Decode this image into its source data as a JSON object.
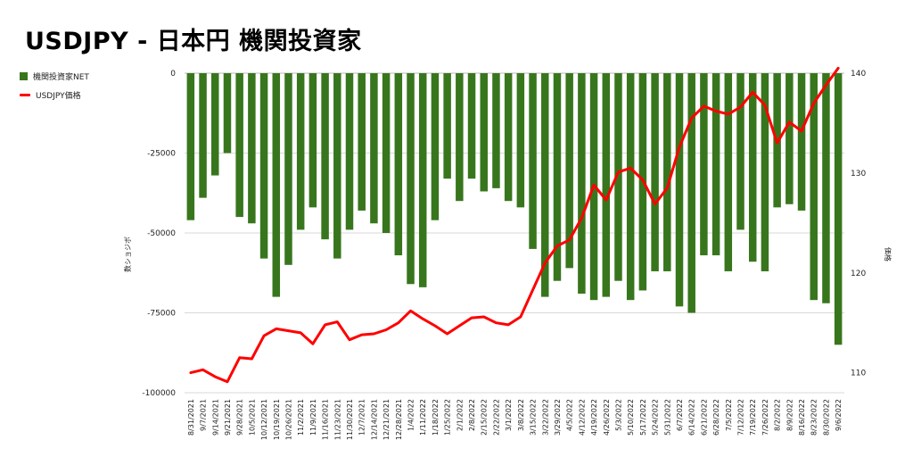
{
  "title": "USDJPY - 日本円 機関投資家",
  "colors": {
    "bar": "#38761d",
    "line": "#ff0000",
    "grid": "#d9d9d9",
    "text": "#222222"
  },
  "chart_data": {
    "type": "bar+line",
    "title": "USDJPY - 日本円 機関投資家",
    "ylabel_left": "数ショジボ",
    "ylabel_right": "価格",
    "ylim_left": [
      -100000,
      0
    ],
    "yticks_left": [
      "0",
      "-25000",
      "-50000",
      "-75000",
      "-100000"
    ],
    "ylim_right": [
      108,
      140
    ],
    "yticks_right": [
      "110",
      "120",
      "130",
      "140"
    ],
    "grid": true,
    "legend_position": "top-left",
    "dates": [
      "8/31/2021",
      "9/7/2021",
      "9/14/2021",
      "9/21/2021",
      "9/28/2021",
      "10/5/2021",
      "10/12/2021",
      "10/19/2021",
      "10/26/2021",
      "11/2/2021",
      "11/9/2021",
      "11/16/2021",
      "11/23/2021",
      "11/30/2021",
      "12/7/2021",
      "12/14/2021",
      "12/21/2021",
      "12/28/2021",
      "1/4/2022",
      "1/11/2022",
      "1/18/2022",
      "1/25/2022",
      "2/1/2022",
      "2/8/2022",
      "2/15/2022",
      "2/22/2022",
      "3/1/2022",
      "3/8/2022",
      "3/15/2022",
      "3/22/2022",
      "3/29/2022",
      "4/5/2022",
      "4/12/2022",
      "4/19/2022",
      "4/26/2022",
      "5/3/2022",
      "5/10/2022",
      "5/17/2022",
      "5/24/2022",
      "5/31/2022",
      "6/7/2022",
      "6/14/2022",
      "6/21/2022",
      "6/28/2022",
      "7/5/2022",
      "7/12/2022",
      "7/19/2022",
      "7/26/2022",
      "8/2/2022",
      "8/9/2022",
      "8/16/2022",
      "8/23/2022",
      "8/30/2022",
      "9/6/2022"
    ],
    "series": [
      {
        "name": "機関投資家NET",
        "type": "bar",
        "values": [
          -46000,
          -39000,
          -32000,
          -25000,
          -45000,
          -47000,
          -58000,
          -70000,
          -60000,
          -49000,
          -42000,
          -52000,
          -58000,
          -49000,
          -43000,
          -47000,
          -50000,
          -57000,
          -66000,
          -67000,
          -46000,
          -33000,
          -40000,
          -33000,
          -37000,
          -36000,
          -40000,
          -42000,
          -55000,
          -70000,
          -65000,
          -61000,
          -69000,
          -71000,
          -70000,
          -65000,
          -71000,
          -68000,
          -62000,
          -62000,
          -73000,
          -75000,
          -57000,
          -57000,
          -62000,
          -49000,
          -59000,
          -62000,
          -42000,
          -41000,
          -43000,
          -71000,
          -72000,
          -85000
        ]
      },
      {
        "name": "USDJPY価格",
        "type": "line",
        "values": [
          110.0,
          110.3,
          109.6,
          109.1,
          111.5,
          111.4,
          113.7,
          114.4,
          114.2,
          114.0,
          112.9,
          114.8,
          115.1,
          113.3,
          113.8,
          113.9,
          114.3,
          115.0,
          116.2,
          115.4,
          114.7,
          113.9,
          114.7,
          115.5,
          115.6,
          115.0,
          114.8,
          115.6,
          118.3,
          121.0,
          122.7,
          123.3,
          125.5,
          128.8,
          127.3,
          130.1,
          130.5,
          129.3,
          126.9,
          128.5,
          132.6,
          135.5,
          136.7,
          136.2,
          135.9,
          136.6,
          138.1,
          136.8,
          133.0,
          135.1,
          134.2,
          137.0,
          138.8,
          140.5
        ]
      }
    ]
  }
}
